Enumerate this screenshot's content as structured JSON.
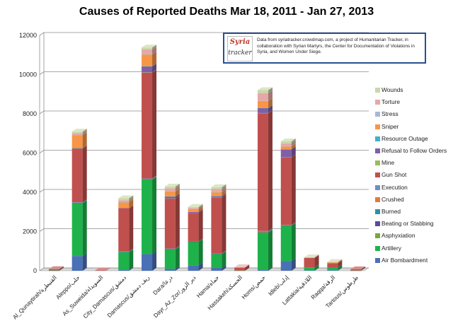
{
  "title": "Causes of Reported Deaths Mar 18, 2011 - Jan 27, 2013",
  "info_box": {
    "logo_line1": "Syria",
    "logo_line2": "tracker",
    "text": "Data from syriatracker.crowdmap.com, a project of Humanitarian Tracker, in collaboration with Syrian Martyrs, the Center for Documentation of Violations in Syria, and Women Under Siege."
  },
  "chart_data": {
    "type": "bar",
    "stacked": true,
    "style": "3d",
    "title": "Causes of Reported Deaths Mar 18, 2011 - Jan 27, 2013",
    "categories": [
      "Al_Qunaytirah/القنيطرة",
      "Aleppo/حلب",
      "As_Suweida/السويداء",
      "City_Damascus/دمشق",
      "Damascus/ريف دمشق",
      "Dara/درعا",
      "Dayr_Az_Zor/دير الزور",
      "Hama/حماة",
      "Hassakeh/الحسكة",
      "Homs/حمص",
      "Idleb/إدلب",
      "Lattakia/اللاذقية",
      "Raqqa/الرقة",
      "Tartous/طرطوس"
    ],
    "ylim": [
      0,
      12000
    ],
    "yticks": [
      0,
      2000,
      4000,
      6000,
      8000,
      10000,
      12000
    ],
    "grid": true,
    "legend_position": "right",
    "series": [
      {
        "name": "Air Bombardment",
        "color": "#4a70b5",
        "values": [
          10,
          750,
          0,
          50,
          850,
          100,
          280,
          150,
          0,
          50,
          500,
          20,
          30,
          0
        ]
      },
      {
        "name": "Artillery",
        "color": "#1db34a",
        "values": [
          10,
          2700,
          0,
          900,
          3800,
          1000,
          1200,
          700,
          10,
          1900,
          1800,
          150,
          150,
          10
        ]
      },
      {
        "name": "Asphyxiation",
        "color": "#78a83a",
        "values": [
          0,
          5,
          0,
          0,
          10,
          0,
          0,
          5,
          0,
          5,
          0,
          0,
          0,
          0
        ]
      },
      {
        "name": "Beating or Stabbing",
        "color": "#5c4b96",
        "values": [
          0,
          10,
          0,
          5,
          10,
          5,
          5,
          5,
          0,
          10,
          5,
          0,
          0,
          0
        ]
      },
      {
        "name": "Burned",
        "color": "#2f8fa8",
        "values": [
          0,
          5,
          0,
          5,
          10,
          5,
          0,
          5,
          0,
          10,
          5,
          0,
          0,
          0
        ]
      },
      {
        "name": "Crushed",
        "color": "#e37b3a",
        "values": [
          0,
          0,
          0,
          0,
          5,
          0,
          0,
          0,
          0,
          5,
          0,
          0,
          0,
          0
        ]
      },
      {
        "name": "Execution",
        "color": "#6f8fc4",
        "values": [
          0,
          20,
          0,
          20,
          20,
          20,
          10,
          20,
          0,
          50,
          20,
          5,
          0,
          0
        ]
      },
      {
        "name": "Gun Shot",
        "color": "#c0504d",
        "values": [
          60,
          2750,
          20,
          2200,
          5400,
          2550,
          1450,
          2850,
          150,
          6000,
          3450,
          480,
          200,
          60
        ]
      },
      {
        "name": "Mine",
        "color": "#9bbb59",
        "values": [
          0,
          5,
          0,
          0,
          10,
          5,
          0,
          5,
          0,
          10,
          5,
          0,
          0,
          0
        ]
      },
      {
        "name": "Refusal to Follow Orders",
        "color": "#7f5fa8",
        "values": [
          0,
          10,
          0,
          10,
          300,
          100,
          50,
          60,
          0,
          250,
          400,
          0,
          0,
          0
        ]
      },
      {
        "name": "Resource Outage",
        "color": "#3fb3c4",
        "values": [
          0,
          5,
          0,
          0,
          10,
          5,
          0,
          5,
          0,
          10,
          5,
          0,
          0,
          0
        ]
      },
      {
        "name": "Sniper",
        "color": "#f79646",
        "values": [
          0,
          650,
          0,
          300,
          600,
          250,
          150,
          200,
          10,
          350,
          150,
          20,
          50,
          0
        ]
      },
      {
        "name": "Stress",
        "color": "#a5b8d8",
        "values": [
          0,
          5,
          0,
          5,
          5,
          5,
          0,
          5,
          0,
          5,
          5,
          0,
          0,
          0
        ]
      },
      {
        "name": "Torture",
        "color": "#e6a8a6",
        "values": [
          0,
          100,
          0,
          100,
          250,
          150,
          60,
          150,
          10,
          400,
          150,
          5,
          10,
          0
        ]
      },
      {
        "name": "Wounds",
        "color": "#c9d8a8",
        "values": [
          0,
          80,
          0,
          100,
          100,
          100,
          50,
          100,
          0,
          150,
          100,
          5,
          5,
          0
        ]
      }
    ]
  }
}
